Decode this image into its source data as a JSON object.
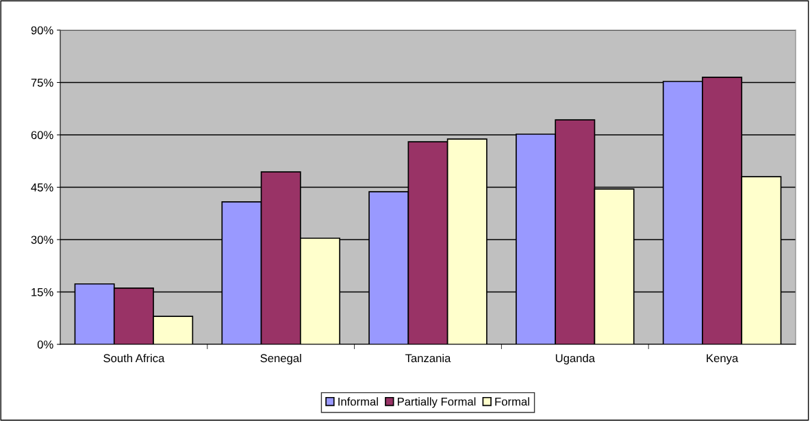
{
  "chart_data": {
    "type": "bar",
    "categories": [
      "South Africa",
      "Senegal",
      "Tanzania",
      "Uganda",
      "Kenya"
    ],
    "series": [
      {
        "name": "Informal",
        "color": "#9999ff",
        "values": [
          17.3,
          40.8,
          43.7,
          60.2,
          75.3
        ]
      },
      {
        "name": "Partially Formal",
        "color": "#993366",
        "values": [
          16.1,
          49.4,
          58.0,
          64.3,
          76.5
        ]
      },
      {
        "name": "Formal",
        "color": "#ffffcc",
        "values": [
          8.0,
          30.4,
          58.8,
          44.5,
          48.0
        ]
      }
    ],
    "ylim": [
      0,
      90
    ],
    "yticks": [
      {
        "value": 0,
        "label": "0%"
      },
      {
        "value": 15,
        "label": "15%"
      },
      {
        "value": 30,
        "label": "30%"
      },
      {
        "value": 45,
        "label": "45%"
      },
      {
        "value": 60,
        "label": "60%"
      },
      {
        "value": 75,
        "label": "75%"
      },
      {
        "value": 90,
        "label": "90%"
      }
    ],
    "grid": "y",
    "legend": "bottom"
  }
}
